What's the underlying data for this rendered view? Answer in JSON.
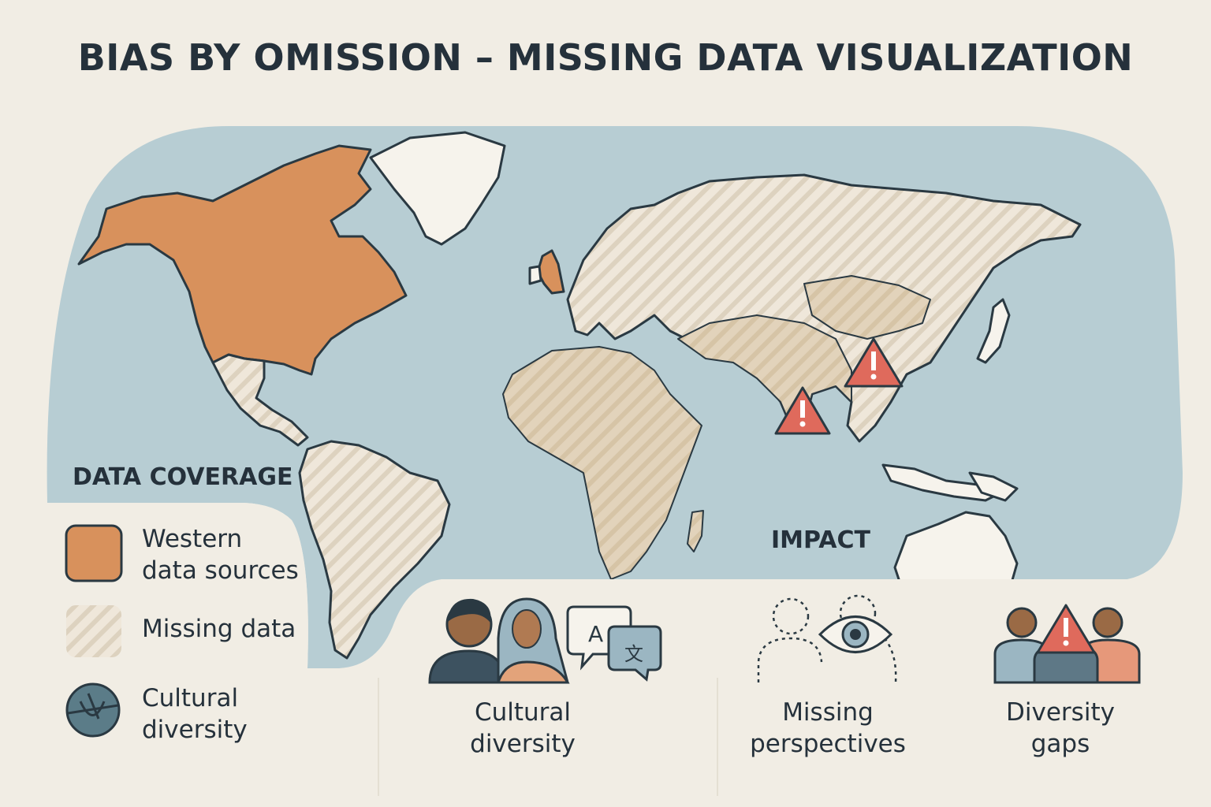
{
  "title": "BIAS BY OMISSION – MISSING DATA VISUALIZATION",
  "colors": {
    "background": "#f1ede4",
    "ocean": "#b7cdd3",
    "western": "#d8915c",
    "missing": "#e6dccb",
    "warning": "#df6a5c",
    "outline": "#2a3942"
  },
  "legend": {
    "title": "DATA COVERAGE",
    "items": [
      {
        "label_line1": "Western",
        "label_line2": "data sources",
        "swatch": "western-swatch"
      },
      {
        "label_line1": "Missing data",
        "label_line2": "",
        "swatch": "missing-hatch-swatch"
      },
      {
        "label_line1": "Cultural",
        "label_line2": "diversity",
        "swatch": "cultural-diversity-icon"
      }
    ]
  },
  "impact": {
    "title": "IMPACT",
    "items": [
      {
        "label_line1": "Cultural",
        "label_line2": "diversity",
        "icon": "people-translation-icon"
      },
      {
        "label_line1": "Missing",
        "label_line2": "perspectives",
        "icon": "eye-silhouettes-icon"
      },
      {
        "label_line1": "Diversity",
        "label_line2": "gaps",
        "icon": "people-warning-icon"
      }
    ]
  },
  "translation_glyphs": [
    "A",
    "文"
  ],
  "map_warnings": [
    "warning-icon-india",
    "warning-icon-china"
  ]
}
